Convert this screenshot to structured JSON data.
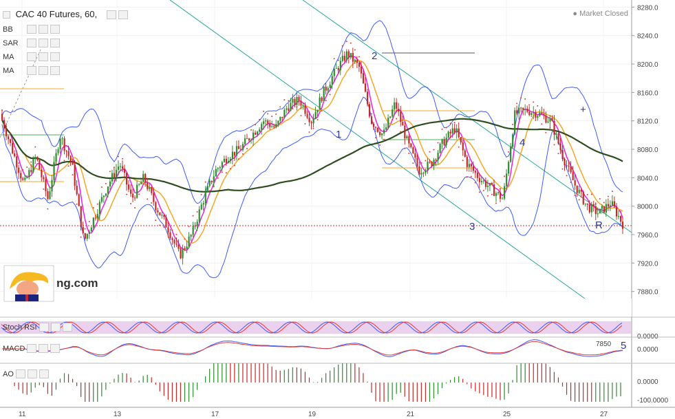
{
  "header": {
    "title": "CAC 40 Futures, 60,",
    "market_status": "Market Closed"
  },
  "indicators": [
    "BB",
    "SAR",
    "MA",
    "MA"
  ],
  "sub_panels": {
    "stoch": "Stoch RSI",
    "macd": "MACD",
    "ao": "AO"
  },
  "watermark": "ng.com",
  "annotations": {
    "wave_labels": [
      "1",
      "2",
      "3",
      "4",
      "5",
      "R",
      "+"
    ],
    "macd_readout": "7850"
  },
  "colors": {
    "up": "#2e8b2e",
    "down": "#c62828",
    "bb": "#3d5afe",
    "ma_fast": "#e91ee0",
    "ma_slow": "#f5a623",
    "ma_long": "#2e4d1e",
    "channel": "#26a69a",
    "sar": "#e53935",
    "stoch_bg": "#e1bee7"
  },
  "chart_data": {
    "type": "candlestick",
    "ylim": [
      7870,
      8290
    ],
    "y_ticks": [
      "8280.0",
      "8240.0",
      "8200.0",
      "8160.0",
      "8120.0",
      "8080.0",
      "8040.0",
      "8000.0",
      "7960.0",
      "7920.0",
      "7880.0"
    ],
    "x_ticks": [
      "11",
      "13",
      "17",
      "19",
      "21",
      "25",
      "27"
    ],
    "stoch_ticks": [
      "0.0000"
    ],
    "macd_ticks": [
      "0.0000"
    ],
    "ao_ticks": [
      "0.0000",
      "-100.0000"
    ],
    "price_path": [
      [
        0,
        8130
      ],
      [
        6,
        8080
      ],
      [
        12,
        8030
      ],
      [
        18,
        8070
      ],
      [
        24,
        8010
      ],
      [
        30,
        8100
      ],
      [
        36,
        8060
      ],
      [
        42,
        7950
      ],
      [
        48,
        7990
      ],
      [
        54,
        8030
      ],
      [
        60,
        8060
      ],
      [
        66,
        8010
      ],
      [
        72,
        8040
      ],
      [
        78,
        8000
      ],
      [
        84,
        7970
      ],
      [
        90,
        7930
      ],
      [
        96,
        7960
      ],
      [
        102,
        8010
      ],
      [
        108,
        8050
      ],
      [
        114,
        8070
      ],
      [
        120,
        8080
      ],
      [
        126,
        8100
      ],
      [
        132,
        8120
      ],
      [
        138,
        8110
      ],
      [
        144,
        8140
      ],
      [
        150,
        8150
      ],
      [
        156,
        8120
      ],
      [
        162,
        8160
      ],
      [
        168,
        8190
      ],
      [
        174,
        8215
      ],
      [
        180,
        8195
      ],
      [
        186,
        8120
      ],
      [
        192,
        8100
      ],
      [
        198,
        8145
      ],
      [
        204,
        8090
      ],
      [
        210,
        8050
      ],
      [
        216,
        8060
      ],
      [
        222,
        8090
      ],
      [
        228,
        8110
      ],
      [
        234,
        8060
      ],
      [
        240,
        8040
      ],
      [
        246,
        8025
      ],
      [
        252,
        8010
      ],
      [
        258,
        8130
      ],
      [
        264,
        8135
      ],
      [
        270,
        8130
      ],
      [
        276,
        8120
      ],
      [
        282,
        8070
      ],
      [
        288,
        8030
      ],
      [
        294,
        8000
      ],
      [
        300,
        7990
      ],
      [
        306,
        8005
      ],
      [
        312,
        7975
      ]
    ]
  }
}
